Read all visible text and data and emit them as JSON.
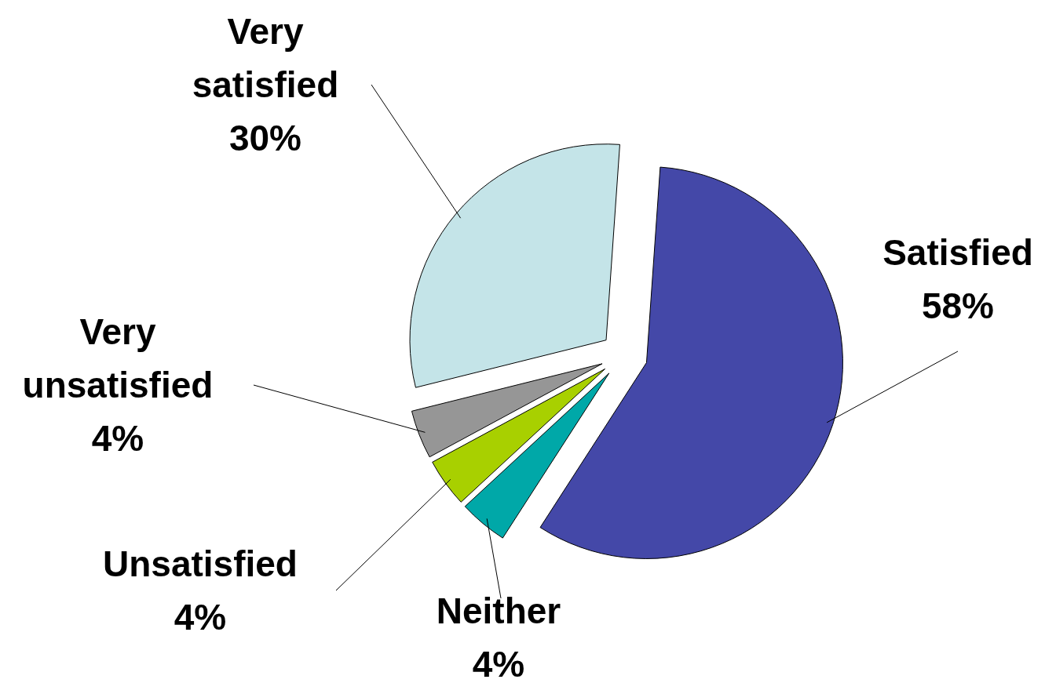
{
  "chart_data": {
    "type": "pie",
    "categories": [
      "Satisfied",
      "Neither",
      "Unsatisfied",
      "Very unsatisfied",
      "Very satisfied"
    ],
    "values": [
      58,
      4,
      4,
      4,
      30
    ],
    "value_labels": [
      "58%",
      "4%",
      "4%",
      "4%",
      "30%"
    ],
    "colors": [
      "#4448a8",
      "#00a8a8",
      "#a8d000",
      "#969696",
      "#c4e4e8"
    ]
  }
}
